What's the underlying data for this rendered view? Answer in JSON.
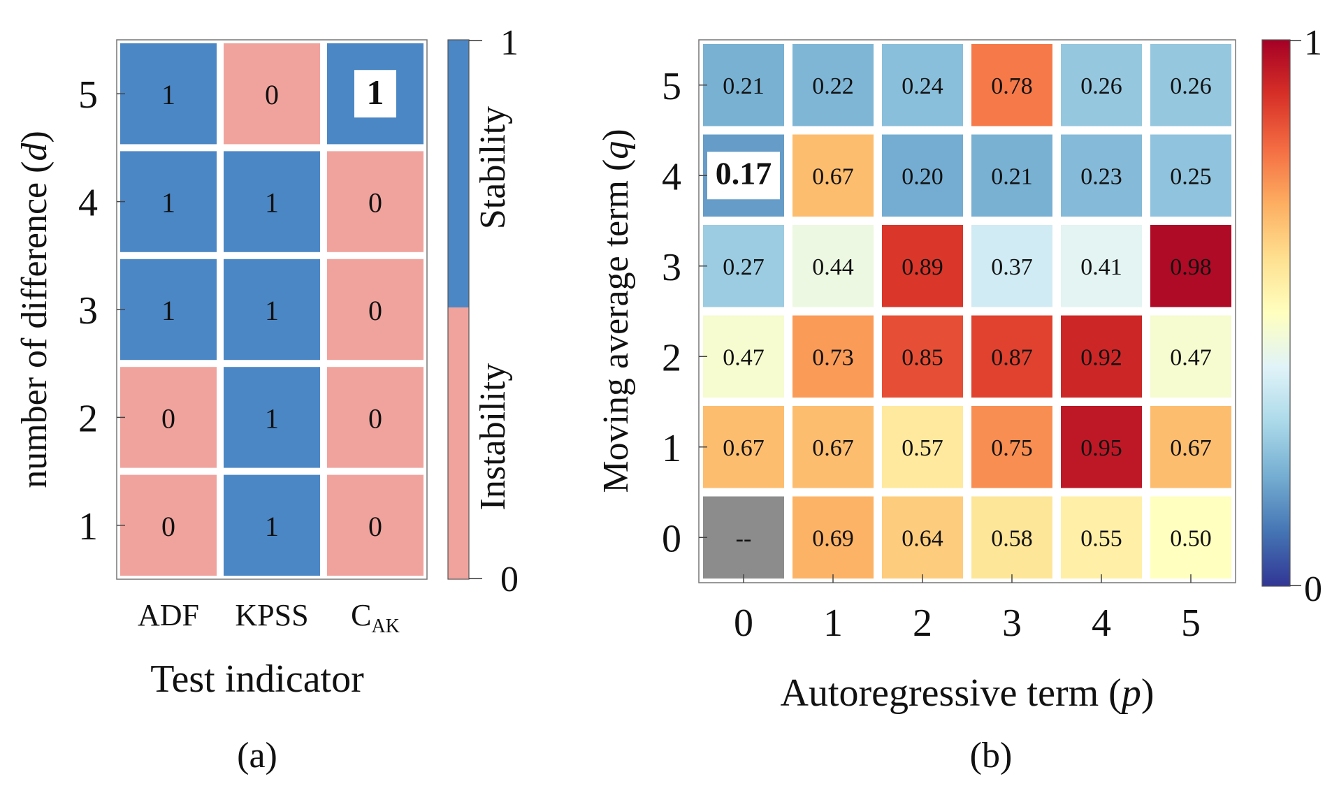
{
  "chart_data": [
    {
      "type": "heatmap",
      "panel_label": "(a)",
      "xlabel": "Test indicator",
      "ylabel": "number of difference (d)",
      "ylabel_main": "number of difference (",
      "ylabel_var": "d",
      "ylabel_close": ")",
      "x_categories": [
        "ADF",
        "KPSS",
        "C_AK"
      ],
      "x_tick_texts": [
        {
          "main": "ADF",
          "sub": ""
        },
        {
          "main": "KPSS",
          "sub": ""
        },
        {
          "main": "C",
          "sub": "AK"
        }
      ],
      "y_categories": [
        5,
        4,
        3,
        2,
        1
      ],
      "values": [
        [
          1,
          0,
          1
        ],
        [
          1,
          1,
          0
        ],
        [
          1,
          1,
          0
        ],
        [
          0,
          1,
          0
        ],
        [
          0,
          1,
          0
        ]
      ],
      "highlight": {
        "row": 0,
        "col": 2
      },
      "colorbar": {
        "min": "0",
        "max": "1",
        "labels": [
          "Stability",
          "Instability"
        ],
        "colors": {
          "stability": "#4b87c5",
          "instability": "#f0a39d"
        }
      },
      "grid": false
    },
    {
      "type": "heatmap",
      "panel_label": "(b)",
      "xlabel": "Autoregressive term (p)",
      "xlabel_main": "Autoregressive term (",
      "xlabel_var": "p",
      "xlabel_close": ")",
      "ylabel": "Moving average term (q)",
      "ylabel_main": "Moving average term (",
      "ylabel_var": "q",
      "ylabel_close": ")",
      "x_categories": [
        "0",
        "1",
        "2",
        "3",
        "4",
        "5"
      ],
      "y_categories": [
        "5",
        "4",
        "3",
        "2",
        "1",
        "0"
      ],
      "cell_labels": [
        [
          "0.21",
          "0.22",
          "0.24",
          "0.78",
          "0.26",
          "0.26"
        ],
        [
          "0.17",
          "0.67",
          "0.20",
          "0.21",
          "0.23",
          "0.25"
        ],
        [
          "0.27",
          "0.44",
          "0.89",
          "0.37",
          "0.41",
          "0.98"
        ],
        [
          "0.47",
          "0.73",
          "0.85",
          "0.87",
          "0.92",
          "0.47"
        ],
        [
          "0.67",
          "0.67",
          "0.57",
          "0.75",
          "0.95",
          "0.67"
        ],
        [
          "--",
          "0.69",
          "0.64",
          "0.58",
          "0.55",
          "0.50"
        ]
      ],
      "values": [
        [
          0.21,
          0.22,
          0.24,
          0.78,
          0.26,
          0.26
        ],
        [
          0.17,
          0.67,
          0.2,
          0.21,
          0.23,
          0.25
        ],
        [
          0.27,
          0.44,
          0.89,
          0.37,
          0.41,
          0.98
        ],
        [
          0.47,
          0.73,
          0.85,
          0.87,
          0.92,
          0.47
        ],
        [
          0.67,
          0.67,
          0.57,
          0.75,
          0.95,
          0.67
        ],
        [
          null,
          0.69,
          0.64,
          0.58,
          0.55,
          0.5
        ]
      ],
      "highlight": {
        "row": 1,
        "col": 0
      },
      "colorbar": {
        "min": "0",
        "max": "1",
        "colormap": "RdYlBu_r",
        "missing_color": "#8c8c8c"
      },
      "grid": false
    }
  ]
}
